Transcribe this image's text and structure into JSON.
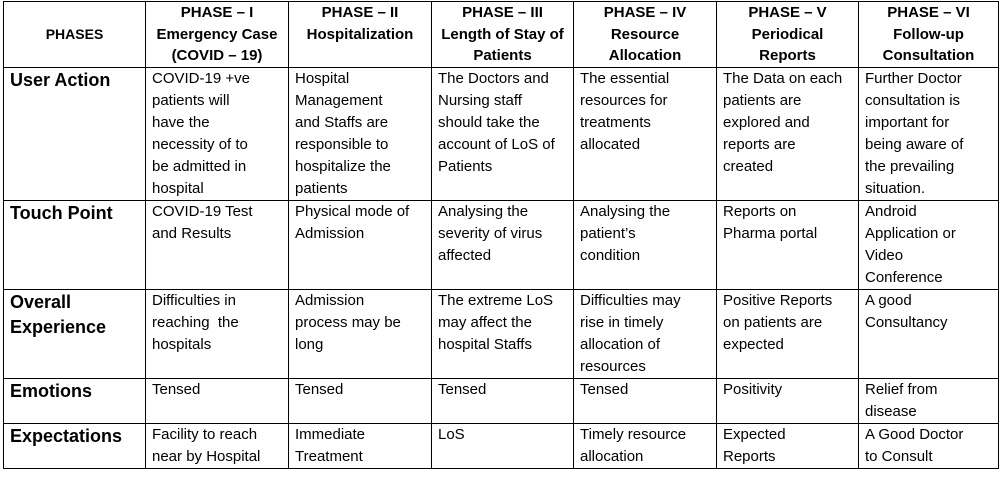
{
  "table": {
    "corner": "PHASES",
    "columns": [
      [
        "PHASE – I",
        "Emergency Case",
        "(COVID – 19)"
      ],
      [
        "PHASE – II",
        "Hospitalization"
      ],
      [
        "PHASE – III",
        "Length of Stay of",
        "Patients"
      ],
      [
        "PHASE – IV",
        "Resource",
        "Allocation"
      ],
      [
        "PHASE – V",
        "Periodical",
        "Reports"
      ],
      [
        "PHASE – VI",
        "Follow-up",
        "Consultation"
      ]
    ],
    "rows": [
      {
        "label": "User Action",
        "cells": [
          [
            "COVID-19 +ve",
            "patients will",
            "have the",
            "necessity of to",
            "be admitted in",
            "hospital"
          ],
          [
            "Hospital",
            "Management",
            "and Staffs are",
            "responsible to",
            "hospitalize the",
            "patients"
          ],
          [
            "The Doctors and",
            "Nursing staff",
            "should take the",
            "account of LoS of",
            "Patients"
          ],
          [
            "The essential",
            "resources for",
            "treatments",
            "allocated"
          ],
          [
            "The Data on each",
            "patients are",
            "explored and",
            "reports are",
            "created"
          ],
          [
            "Further Doctor",
            "consultation is",
            "important for",
            "being aware of",
            "the prevailing",
            "situation."
          ]
        ]
      },
      {
        "label": "Touch Point",
        "cells": [
          [
            "COVID-19 Test",
            "and Results"
          ],
          [
            "Physical mode of",
            "Admission"
          ],
          [
            "Analysing the",
            "severity of virus",
            "affected"
          ],
          [
            "Analysing the",
            "patient’s",
            "condition"
          ],
          [
            "Reports on",
            "Pharma portal"
          ],
          [
            "Android",
            "Application or",
            "Video",
            "Conference"
          ]
        ]
      },
      {
        "label": [
          "Overall",
          "Experience"
        ],
        "cells": [
          [
            "Difficulties in",
            "reaching  the",
            "hospitals"
          ],
          [
            "Admission",
            "process may be",
            "long"
          ],
          [
            "The extreme LoS",
            "may affect the",
            "hospital Staffs"
          ],
          [
            "Difficulties may",
            "rise in timely",
            "allocation of",
            "resources"
          ],
          [
            "Positive Reports",
            "on patients are",
            "expected"
          ],
          [
            "A good",
            "Consultancy"
          ]
        ]
      },
      {
        "label": "Emotions",
        "cells": [
          [
            "Tensed"
          ],
          [
            "Tensed"
          ],
          [
            "Tensed"
          ],
          [
            "Tensed"
          ],
          [
            "Positivity"
          ],
          [
            "Relief from",
            "disease"
          ]
        ]
      },
      {
        "label": "Expectations",
        "cells": [
          [
            "Facility to reach",
            "near by Hospital"
          ],
          [
            "Immediate",
            "Treatment"
          ],
          [
            "LoS"
          ],
          [
            "Timely resource",
            "allocation"
          ],
          [
            "Expected",
            "Reports"
          ],
          [
            "A Good Doctor",
            "to Consult"
          ]
        ]
      }
    ]
  }
}
